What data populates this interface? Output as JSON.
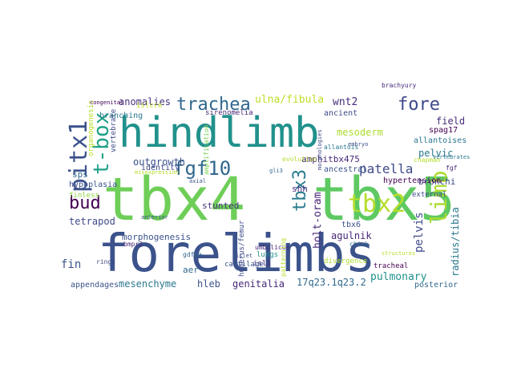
{
  "words": [
    {
      "text": "forelimbs",
      "color": "#3b528b"
    },
    {
      "text": "tbx4",
      "color": "#6ece58"
    },
    {
      "text": "tbx5",
      "color": "#5ec962"
    },
    {
      "text": "hindlimb",
      "color": "#21918c"
    },
    {
      "text": "pitx1",
      "color": "#3b528b"
    },
    {
      "text": "t-box",
      "color": "#1fa187"
    },
    {
      "text": "trachea",
      "color": "#31688e"
    },
    {
      "text": "fgf10",
      "color": "#31688e"
    },
    {
      "text": "bud",
      "color": "#440154"
    },
    {
      "text": "fore",
      "color": "#3e4989"
    },
    {
      "text": "tbx2",
      "color": "#b5de2b"
    },
    {
      "text": "limb",
      "color": "#addc30"
    },
    {
      "text": "tbx3",
      "color": "#287c8e"
    },
    {
      "text": "patella",
      "color": "#3e4989"
    },
    {
      "text": "holt-oram",
      "color": "#482878"
    },
    {
      "text": "pelvis",
      "color": "#3e4989"
    },
    {
      "text": "radius/tibia",
      "color": "#2a788e"
    },
    {
      "text": "ulna/fibula",
      "color": "#bddf26"
    },
    {
      "text": "anomalies",
      "color": "#46327e"
    },
    {
      "text": "mesoderm",
      "color": "#addc30"
    },
    {
      "text": "wnt2",
      "color": "#472d7b"
    },
    {
      "text": "field",
      "color": "#472d7b"
    },
    {
      "text": "spag17",
      "color": "#440154"
    },
    {
      "text": "pelvic",
      "color": "#2a788e"
    },
    {
      "text": "outgrowth",
      "color": "#3b528b"
    },
    {
      "text": "agulnik",
      "color": "#482878"
    },
    {
      "text": "genitalia",
      "color": "#482878"
    },
    {
      "text": "appendages",
      "color": "#3b528b"
    },
    {
      "text": "mesenchyme",
      "color": "#2a788e"
    },
    {
      "text": "hleb",
      "color": "#3b528b"
    },
    {
      "text": "morphogenesis",
      "color": "#3b528b"
    },
    {
      "text": "17q23.1q23.2",
      "color": "#31688e"
    },
    {
      "text": "pulmonary",
      "color": "#21918c"
    },
    {
      "text": "tetrapod",
      "color": "#3e4989"
    },
    {
      "text": "hypoplasia",
      "color": "#3b528b"
    },
    {
      "text": "stunted",
      "color": "#46327e"
    },
    {
      "text": "shh",
      "color": "#482878"
    },
    {
      "text": "tbx6",
      "color": "#3b528b"
    },
    {
      "text": "aer",
      "color": "#31688e"
    },
    {
      "text": "amphitbx475",
      "color": "#482878"
    },
    {
      "text": "bronchi",
      "color": "#3e4989"
    },
    {
      "text": "posterior",
      "color": "#31688e"
    },
    {
      "text": "isl1",
      "color": "#482878"
    },
    {
      "text": "identity",
      "color": "#3e4989"
    },
    {
      "text": "sps",
      "color": "#31688e"
    },
    {
      "text": "fin",
      "color": "#3b528b"
    },
    {
      "text": "finless",
      "color": "#90d743"
    },
    {
      "text": "branching",
      "color": "#2a788e"
    },
    {
      "text": "islcre",
      "color": "#c2df23"
    },
    {
      "text": "organogenesis",
      "color": "#b5de2b"
    },
    {
      "text": "vertebrate",
      "color": "#3e4989"
    },
    {
      "text": "ancient",
      "color": "#3e4989"
    },
    {
      "text": "allantoises",
      "color": "#2a788e"
    },
    {
      "text": "brachyury",
      "color": "#482878"
    },
    {
      "text": "evolution",
      "color": "#b5de2b"
    },
    {
      "text": "ancestral",
      "color": "#3b528b"
    },
    {
      "text": "hypertension",
      "color": "#440154"
    },
    {
      "text": "external",
      "color": "#3e4989"
    },
    {
      "text": "tracheal",
      "color": "#440154"
    },
    {
      "text": "lungs",
      "color": "#21918c"
    },
    {
      "text": "umbilicus",
      "color": "#482878"
    },
    {
      "text": "sirenomelia",
      "color": "#482878"
    },
    {
      "text": "structures",
      "color": "#b5de2b"
    },
    {
      "text": "divergence",
      "color": "#addc30"
    },
    {
      "text": "patterning",
      "color": "#b5de2b"
    },
    {
      "text": "cartilage",
      "color": "#3b528b"
    },
    {
      "text": "islet",
      "color": "#3b528b"
    },
    {
      "text": "humerus/femur",
      "color": "#3e4989"
    },
    {
      "text": "bmpr2",
      "color": "#482878"
    },
    {
      "text": "gdf6a",
      "color": "#31688e"
    },
    {
      "text": "rings",
      "color": "#3e4989"
    },
    {
      "text": "fgf",
      "color": "#482878"
    },
    {
      "text": "chapman",
      "color": "#b5de2b"
    },
    {
      "text": "chick",
      "color": "#31688e"
    },
    {
      "text": "allantois",
      "color": "#2a788e"
    },
    {
      "text": "amplification",
      "color": "#7ad151"
    },
    {
      "text": "morphologies",
      "color": "#3e4989"
    },
    {
      "text": "misexpression",
      "color": "#b5de2b"
    },
    {
      "text": "axial",
      "color": "#3b528b"
    },
    {
      "text": "gli3",
      "color": "#31688e"
    },
    {
      "text": "embryo",
      "color": "#3b528b"
    },
    {
      "text": "vertebrates",
      "color": "#2a788e"
    },
    {
      "text": "congenital",
      "color": "#440154"
    },
    {
      "text": "anterior",
      "color": "#3b528b"
    }
  ]
}
